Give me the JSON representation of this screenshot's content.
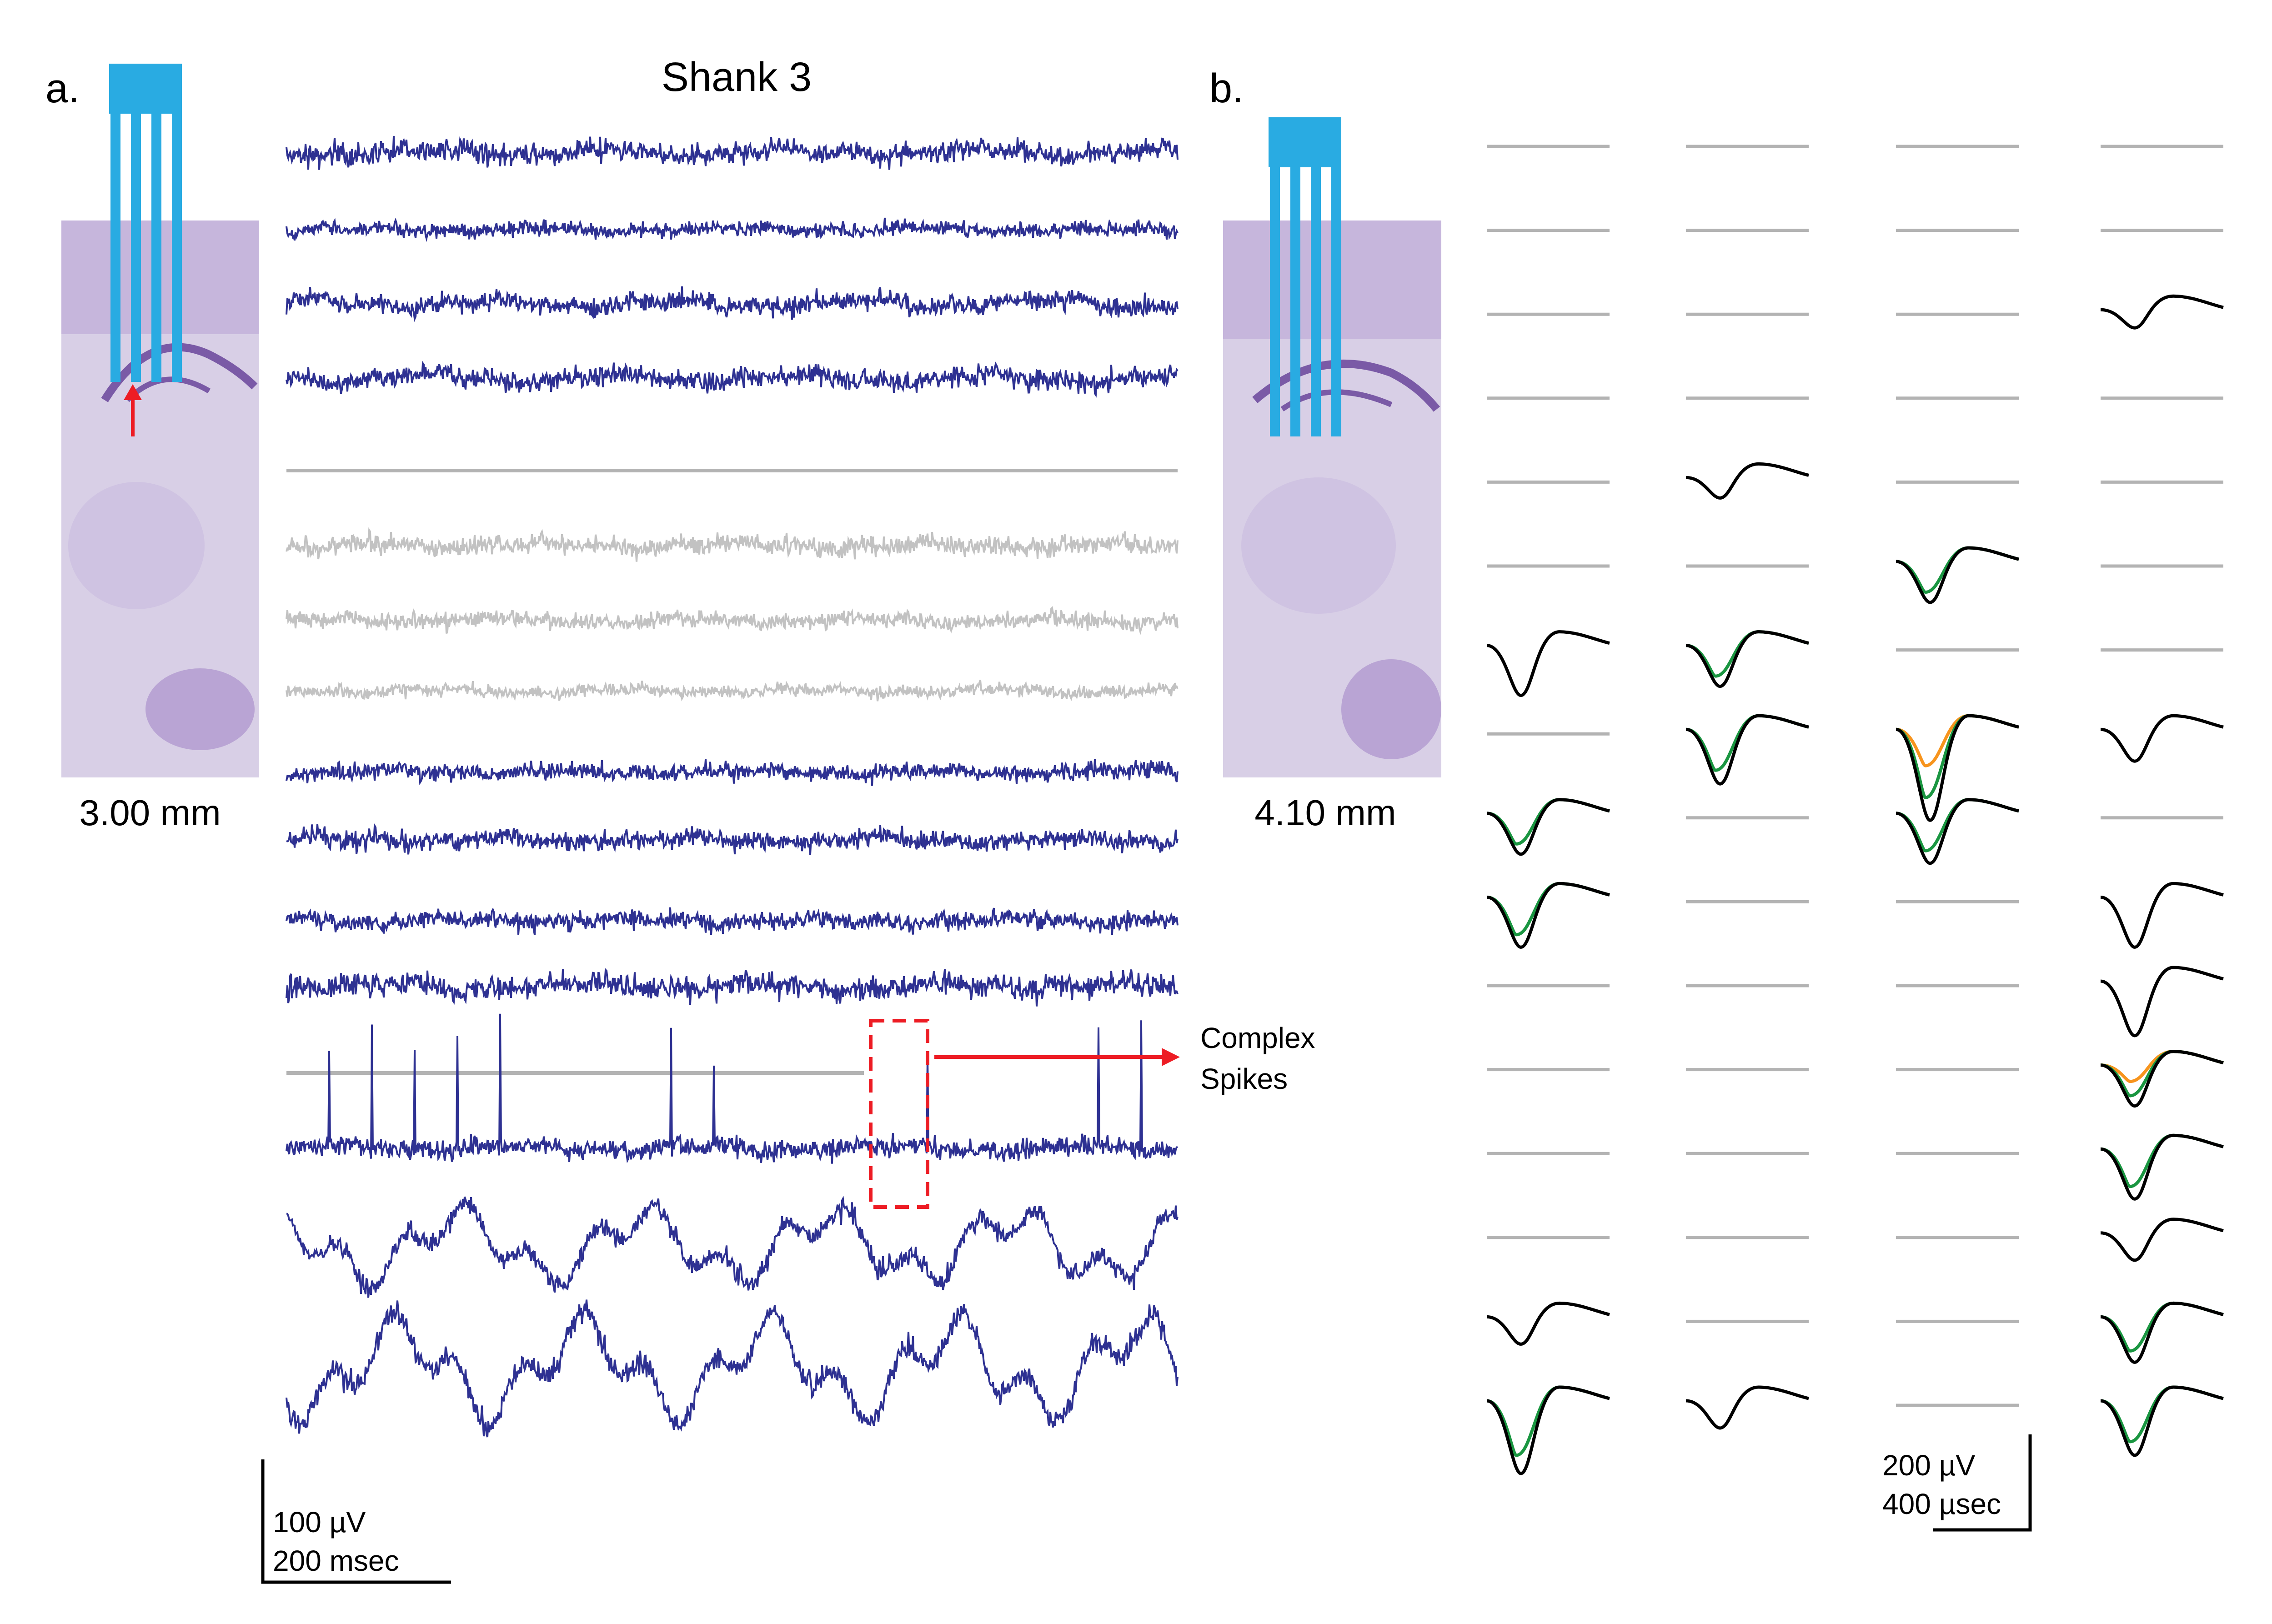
{
  "panel_a": {
    "label": "a.",
    "title": "Shank 3",
    "depth": "3.00 mm",
    "annotation_line1": "Complex",
    "annotation_line2": "Spikes",
    "scalebar_amplitude": "100 µV",
    "scalebar_time": "200 msec"
  },
  "panel_b": {
    "label": "b.",
    "depth": "4.10 mm",
    "scalebar_amplitude": "200 µV",
    "scalebar_time": "400 µsec"
  },
  "colors": {
    "trace": "#2e3192",
    "trace_inactive": "#c2c2c2",
    "probe": "#29abe2",
    "highlight": "#ed1c24",
    "unit_black": "#000000",
    "unit_green": "#1a9641",
    "unit_orange": "#f7941d",
    "baseline": "#b3b3b3",
    "tissue": "#d8cfe6"
  }
}
